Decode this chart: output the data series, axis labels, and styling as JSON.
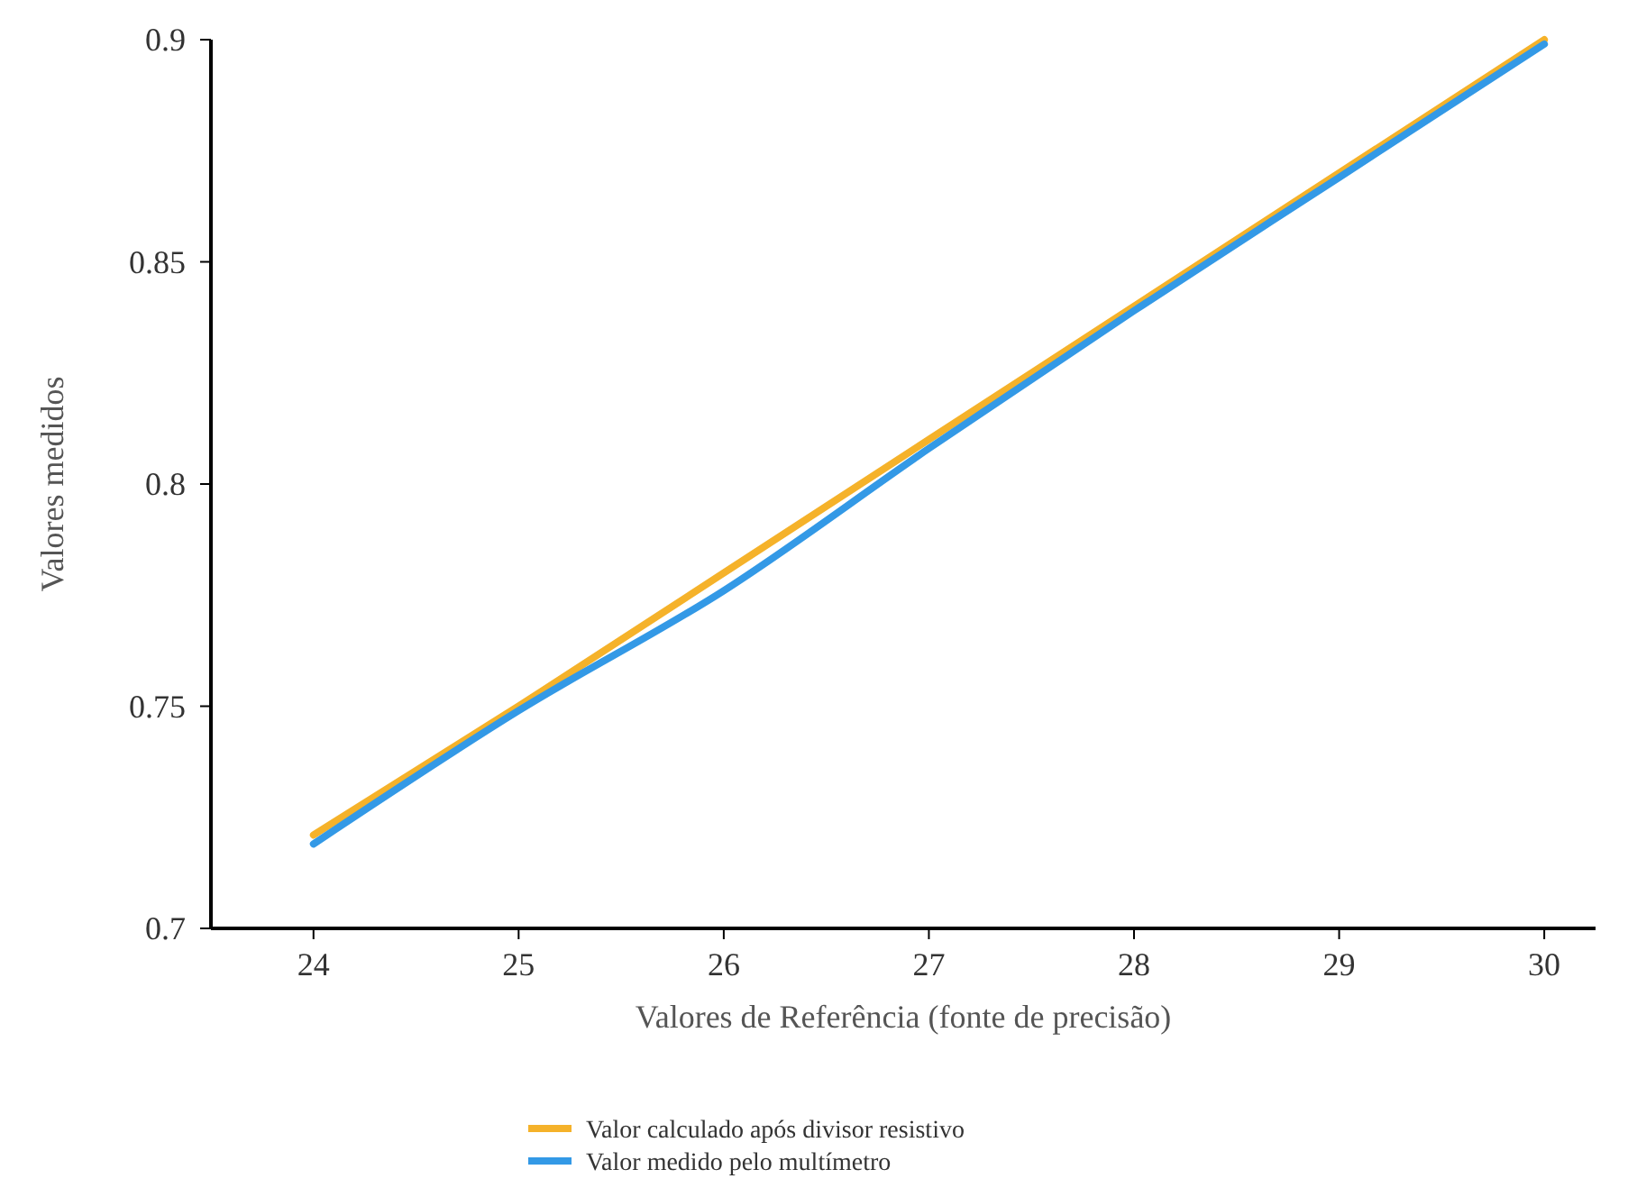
{
  "chart_data": {
    "type": "line",
    "xlabel": "Valores de Referência (fonte de precisão)",
    "ylabel": "Valores medidos",
    "x": [
      24,
      25,
      26,
      27,
      28,
      29,
      30
    ],
    "series": [
      {
        "name": "Valor calculado após divisor resistivo",
        "color": "#f5b22a",
        "values": [
          0.721,
          0.75,
          0.78,
          0.81,
          0.84,
          0.87,
          0.9
        ]
      },
      {
        "name": "Valor medido pelo multímetro",
        "color": "#3399e6",
        "values": [
          0.719,
          0.749,
          0.776,
          0.808,
          0.839,
          0.869,
          0.899
        ]
      }
    ],
    "xlim": [
      23.5,
      30.25
    ],
    "xticks": [
      24,
      25,
      26,
      27,
      28,
      29,
      30
    ],
    "ylim": [
      0.7,
      0.9
    ],
    "yticks": [
      0.7,
      0.75,
      0.8,
      0.85,
      0.9
    ],
    "grid": false,
    "legend": "bottom",
    "marker": "none",
    "line_style": "solid"
  }
}
